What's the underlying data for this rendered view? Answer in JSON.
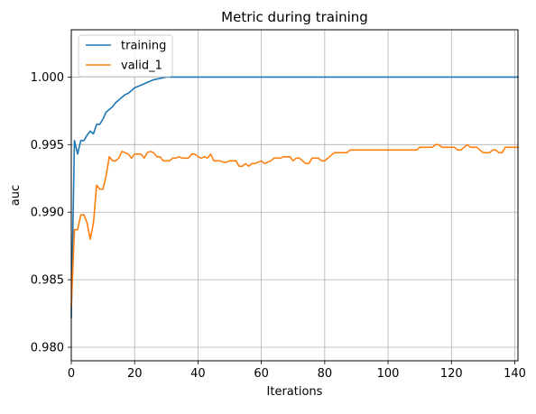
{
  "chart_data": {
    "type": "line",
    "title": "Metric during training",
    "xlabel": "Iterations",
    "ylabel": "auc",
    "xlim": [
      0,
      141
    ],
    "ylim": [
      0.979,
      1.0035
    ],
    "grid": true,
    "legend_position": "top-left",
    "x_ticks": [
      0,
      20,
      40,
      60,
      80,
      100,
      120,
      140
    ],
    "y_ticks": [
      0.98,
      0.985,
      0.99,
      0.995,
      1.0
    ],
    "x_tick_labels": [
      "0",
      "20",
      "40",
      "60",
      "80",
      "100",
      "120",
      "140"
    ],
    "y_tick_labels": [
      "0.980",
      "0.985",
      "0.990",
      "0.995",
      "1.000"
    ],
    "series": [
      {
        "name": "training",
        "color": "#1f77b4",
        "points": [
          [
            0,
            0.9822
          ],
          [
            1,
            0.9953
          ],
          [
            2,
            0.9943
          ],
          [
            3,
            0.9953
          ],
          [
            4,
            0.9953
          ],
          [
            5,
            0.9957
          ],
          [
            6,
            0.996
          ],
          [
            7,
            0.9958
          ],
          [
            8,
            0.9965
          ],
          [
            9,
            0.9965
          ],
          [
            10,
            0.9969
          ],
          [
            11,
            0.9974
          ],
          [
            12,
            0.9976
          ],
          [
            13,
            0.9978
          ],
          [
            14,
            0.9981
          ],
          [
            15,
            0.9983
          ],
          [
            16,
            0.9985
          ],
          [
            17,
            0.9987
          ],
          [
            18,
            0.9988
          ],
          [
            19,
            0.999
          ],
          [
            20,
            0.9992
          ],
          [
            21,
            0.9993
          ],
          [
            22,
            0.9994
          ],
          [
            23,
            0.9995
          ],
          [
            24,
            0.9996
          ],
          [
            25,
            0.9997
          ],
          [
            26,
            0.9998
          ],
          [
            27,
            0.99985
          ],
          [
            28,
            0.9999
          ],
          [
            29,
            0.99995
          ],
          [
            30,
            1.0
          ],
          [
            35,
            1.0
          ],
          [
            45,
            1.0
          ],
          [
            60,
            1.0
          ],
          [
            80,
            1.0
          ],
          [
            100,
            1.0
          ],
          [
            120,
            1.0
          ],
          [
            141,
            1.0
          ]
        ]
      },
      {
        "name": "valid_1",
        "color": "#ff7f0e",
        "points": [
          [
            0,
            0.983
          ],
          [
            1,
            0.9887
          ],
          [
            2,
            0.9887
          ],
          [
            3,
            0.9898
          ],
          [
            4,
            0.9898
          ],
          [
            5,
            0.9892
          ],
          [
            6,
            0.988
          ],
          [
            7,
            0.9892
          ],
          [
            8,
            0.992
          ],
          [
            9,
            0.9917
          ],
          [
            10,
            0.9917
          ],
          [
            11,
            0.9927
          ],
          [
            12,
            0.9941
          ],
          [
            13,
            0.9938
          ],
          [
            14,
            0.9938
          ],
          [
            15,
            0.994
          ],
          [
            16,
            0.9945
          ],
          [
            17,
            0.9944
          ],
          [
            18,
            0.9943
          ],
          [
            19,
            0.994
          ],
          [
            20,
            0.9943
          ],
          [
            21,
            0.9943
          ],
          [
            22,
            0.9943
          ],
          [
            23,
            0.994
          ],
          [
            24,
            0.9944
          ],
          [
            25,
            0.9945
          ],
          [
            26,
            0.9944
          ],
          [
            27,
            0.9941
          ],
          [
            28,
            0.9941
          ],
          [
            29,
            0.9938
          ],
          [
            30,
            0.9938
          ],
          [
            31,
            0.9938
          ],
          [
            32,
            0.994
          ],
          [
            33,
            0.994
          ],
          [
            34,
            0.9941
          ],
          [
            35,
            0.994
          ],
          [
            36,
            0.994
          ],
          [
            37,
            0.994
          ],
          [
            38,
            0.9943
          ],
          [
            39,
            0.9943
          ],
          [
            40,
            0.9941
          ],
          [
            41,
            0.994
          ],
          [
            42,
            0.9941
          ],
          [
            43,
            0.994
          ],
          [
            44,
            0.9943
          ],
          [
            45,
            0.9938
          ],
          [
            46,
            0.9938
          ],
          [
            47,
            0.9938
          ],
          [
            48,
            0.9937
          ],
          [
            49,
            0.9937
          ],
          [
            50,
            0.9938
          ],
          [
            51,
            0.9938
          ],
          [
            52,
            0.9938
          ],
          [
            53,
            0.9934
          ],
          [
            54,
            0.9934
          ],
          [
            55,
            0.9936
          ],
          [
            56,
            0.9934
          ],
          [
            57,
            0.9936
          ],
          [
            58,
            0.9936
          ],
          [
            59,
            0.9937
          ],
          [
            60,
            0.9938
          ],
          [
            61,
            0.9936
          ],
          [
            62,
            0.9937
          ],
          [
            63,
            0.9938
          ],
          [
            64,
            0.994
          ],
          [
            65,
            0.994
          ],
          [
            66,
            0.994
          ],
          [
            67,
            0.9941
          ],
          [
            68,
            0.9941
          ],
          [
            69,
            0.9941
          ],
          [
            70,
            0.9938
          ],
          [
            71,
            0.994
          ],
          [
            72,
            0.994
          ],
          [
            73,
            0.9938
          ],
          [
            74,
            0.9936
          ],
          [
            75,
            0.9936
          ],
          [
            76,
            0.994
          ],
          [
            77,
            0.994
          ],
          [
            78,
            0.994
          ],
          [
            79,
            0.9938
          ],
          [
            80,
            0.9938
          ],
          [
            81,
            0.994
          ],
          [
            82,
            0.9942
          ],
          [
            83,
            0.9944
          ],
          [
            84,
            0.9944
          ],
          [
            85,
            0.9944
          ],
          [
            86,
            0.9944
          ],
          [
            87,
            0.9944
          ],
          [
            88,
            0.9946
          ],
          [
            89,
            0.9946
          ],
          [
            90,
            0.9946
          ],
          [
            95,
            0.9946
          ],
          [
            100,
            0.9946
          ],
          [
            105,
            0.9946
          ],
          [
            108,
            0.9946
          ],
          [
            109,
            0.9946
          ],
          [
            110,
            0.9948
          ],
          [
            111,
            0.9948
          ],
          [
            112,
            0.9948
          ],
          [
            113,
            0.9948
          ],
          [
            114,
            0.9948
          ],
          [
            115,
            0.995
          ],
          [
            116,
            0.995
          ],
          [
            117,
            0.9948
          ],
          [
            118,
            0.9948
          ],
          [
            119,
            0.9948
          ],
          [
            120,
            0.9948
          ],
          [
            121,
            0.9948
          ],
          [
            122,
            0.9946
          ],
          [
            123,
            0.9946
          ],
          [
            124,
            0.9948
          ],
          [
            125,
            0.995
          ],
          [
            126,
            0.9948
          ],
          [
            127,
            0.9948
          ],
          [
            128,
            0.9948
          ],
          [
            129,
            0.9946
          ],
          [
            130,
            0.9944
          ],
          [
            131,
            0.9944
          ],
          [
            132,
            0.9944
          ],
          [
            133,
            0.9946
          ],
          [
            134,
            0.9946
          ],
          [
            135,
            0.9944
          ],
          [
            136,
            0.9944
          ],
          [
            137,
            0.9948
          ],
          [
            138,
            0.9948
          ],
          [
            139,
            0.9948
          ],
          [
            140,
            0.9948
          ],
          [
            141,
            0.9948
          ]
        ]
      }
    ]
  }
}
